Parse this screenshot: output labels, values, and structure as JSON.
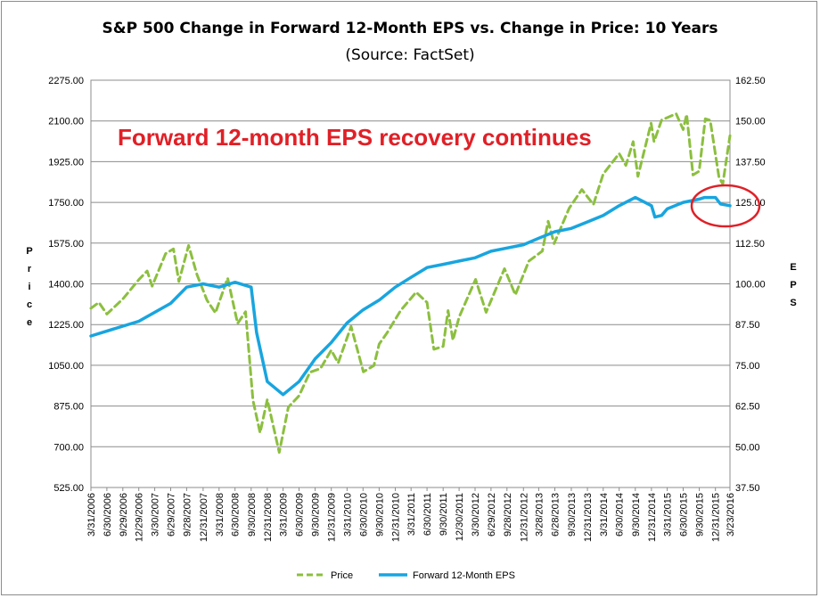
{
  "chart_data": {
    "type": "line",
    "title": "S&P 500 Change in Forward 12-Month EPS vs. Change in Price: 10 Years",
    "subtitle": "(Source: FactSet)",
    "ylabel": "Price",
    "y2label": "EPS",
    "ylim": [
      525,
      2275
    ],
    "y2lim": [
      37.5,
      162.5
    ],
    "yticks": [
      "525.00",
      "700.00",
      "875.00",
      "1050.00",
      "1225.00",
      "1400.00",
      "1575.00",
      "1750.00",
      "1925.00",
      "2100.00",
      "2275.00"
    ],
    "y2ticks": [
      "37.50",
      "50.00",
      "62.50",
      "75.00",
      "87.50",
      "100.00",
      "112.50",
      "125.00",
      "137.50",
      "150.00",
      "162.50"
    ],
    "xrange": [
      "2006-03-31",
      "2016-03-23"
    ],
    "xticks": [
      "3/31/2006",
      "6/30/2006",
      "9/29/2006",
      "12/29/2006",
      "3/30/2007",
      "6/29/2007",
      "9/28/2007",
      "12/31/2007",
      "3/31/2008",
      "6/30/2008",
      "9/30/2008",
      "12/31/2008",
      "3/31/2009",
      "6/30/2009",
      "9/30/2009",
      "12/31/2009",
      "3/31/2010",
      "6/30/2010",
      "9/30/2010",
      "12/31/2010",
      "3/31/2011",
      "6/30/2011",
      "9/30/2011",
      "12/30/2011",
      "3/30/2012",
      "6/29/2012",
      "9/28/2012",
      "12/31/2012",
      "3/28/2013",
      "6/28/2013",
      "9/30/2013",
      "12/31/2013",
      "3/31/2014",
      "6/30/2014",
      "9/30/2014",
      "12/31/2014",
      "3/31/2015",
      "6/30/2015",
      "9/30/2015",
      "12/31/2015",
      "3/23/2016"
    ],
    "grid": true,
    "legend_position": "bottom",
    "series": [
      {
        "name": "Price",
        "axis": "left",
        "color": "#8cbf3f",
        "style": "dashed",
        "x": [
          "2006-03-31",
          "2006-05-15",
          "2006-06-30",
          "2006-09-29",
          "2006-12-29",
          "2007-02-15",
          "2007-03-15",
          "2007-05-31",
          "2007-07-15",
          "2007-08-15",
          "2007-10-09",
          "2007-11-26",
          "2008-01-22",
          "2008-03-10",
          "2008-05-19",
          "2008-06-30",
          "2008-07-15",
          "2008-08-29",
          "2008-10-10",
          "2008-11-20",
          "2008-12-31",
          "2009-03-09",
          "2009-04-30",
          "2009-06-30",
          "2009-08-31",
          "2009-10-30",
          "2009-12-31",
          "2010-02-08",
          "2010-04-23",
          "2010-07-02",
          "2010-08-31",
          "2010-09-30",
          "2010-11-15",
          "2011-01-31",
          "2011-04-29",
          "2011-06-30",
          "2011-08-08",
          "2011-09-30",
          "2011-10-28",
          "2011-11-25",
          "2011-12-30",
          "2012-04-02",
          "2012-06-01",
          "2012-09-14",
          "2012-11-15",
          "2013-01-31",
          "2013-04-18",
          "2013-05-21",
          "2013-06-24",
          "2013-09-18",
          "2013-11-29",
          "2014-02-03",
          "2014-03-31",
          "2014-06-30",
          "2014-08-07",
          "2014-09-18",
          "2014-10-15",
          "2014-12-29",
          "2015-01-15",
          "2015-02-27",
          "2015-05-21",
          "2015-06-30",
          "2015-07-20",
          "2015-08-25",
          "2015-09-29",
          "2015-11-03",
          "2015-12-01",
          "2016-01-20",
          "2016-02-11",
          "2016-03-23"
        ],
        "values": [
          1295,
          1320,
          1270,
          1335,
          1418,
          1455,
          1390,
          1530,
          1550,
          1410,
          1565,
          1440,
          1330,
          1275,
          1425,
          1280,
          1230,
          1280,
          900,
          760,
          903,
          676,
          870,
          919,
          1020,
          1036,
          1115,
          1060,
          1217,
          1022,
          1049,
          1141,
          1190,
          1286,
          1364,
          1320,
          1119,
          1131,
          1285,
          1158,
          1257,
          1419,
          1278,
          1465,
          1353,
          1498,
          1541,
          1669,
          1573,
          1725,
          1805,
          1741,
          1872,
          1960,
          1909,
          2011,
          1862,
          2090,
          2011,
          2104,
          2131,
          2063,
          2128,
          1868,
          1884,
          2109,
          2103,
          1859,
          1829,
          2037
        ]
      },
      {
        "name": "Forward 12-Month EPS",
        "axis": "right",
        "color": "#18a5df",
        "style": "solid",
        "x": [
          "2006-03-31",
          "2006-12-29",
          "2007-06-29",
          "2007-09-28",
          "2007-12-31",
          "2008-03-31",
          "2008-06-30",
          "2008-09-30",
          "2008-10-31",
          "2008-12-31",
          "2009-03-31",
          "2009-06-30",
          "2009-09-30",
          "2009-12-31",
          "2010-03-31",
          "2010-06-30",
          "2010-09-30",
          "2010-12-31",
          "2011-03-31",
          "2011-06-30",
          "2011-09-30",
          "2011-12-30",
          "2012-03-30",
          "2012-06-29",
          "2012-09-28",
          "2012-12-31",
          "2013-03-28",
          "2013-06-28",
          "2013-09-30",
          "2013-12-31",
          "2014-03-31",
          "2014-06-30",
          "2014-09-30",
          "2014-12-31",
          "2015-01-20",
          "2015-02-27",
          "2015-03-31",
          "2015-06-30",
          "2015-09-30",
          "2015-10-30",
          "2015-12-31",
          "2016-01-29",
          "2016-03-23"
        ],
        "values": [
          84,
          88.5,
          94,
          99,
          100,
          99,
          100.5,
          99,
          85,
          70,
          66,
          70,
          77,
          82,
          88,
          92,
          95,
          99,
          102,
          105,
          106,
          107,
          108,
          110,
          111,
          112,
          114,
          116,
          117,
          119,
          121,
          124,
          126.5,
          124,
          120.5,
          121,
          123,
          125,
          126,
          126.5,
          126.5,
          124.5,
          124
        ]
      }
    ],
    "annotations": [
      {
        "text": "Forward 12-month EPS recovery continues",
        "color": "#e02027"
      }
    ]
  }
}
